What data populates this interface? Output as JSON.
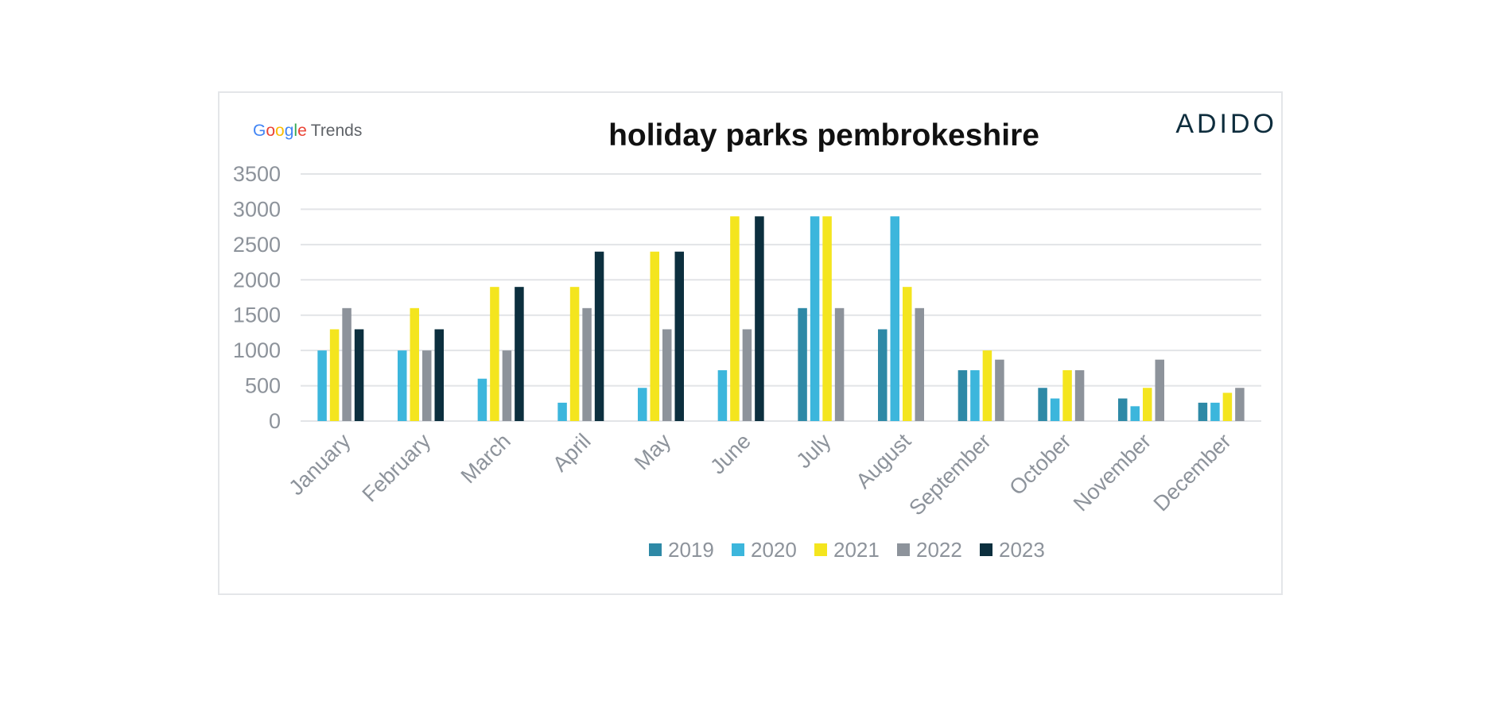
{
  "brand": {
    "google_letters": [
      {
        "ch": "G",
        "color": "#4285F4"
      },
      {
        "ch": "o",
        "color": "#EA4335"
      },
      {
        "ch": "o",
        "color": "#FBBC05"
      },
      {
        "ch": "g",
        "color": "#4285F4"
      },
      {
        "ch": "l",
        "color": "#34A853"
      },
      {
        "ch": "e",
        "color": "#EA4335"
      }
    ],
    "trends_label": "Trends",
    "company_logo": "ADIDO"
  },
  "chart_data": {
    "type": "bar",
    "title": "holiday parks pembrokeshire",
    "xlabel": "",
    "ylabel": "",
    "ylim": [
      0,
      3500
    ],
    "yticks": [
      0,
      500,
      1000,
      1500,
      2000,
      2500,
      3000,
      3500
    ],
    "grid": true,
    "legend_position": "bottom",
    "categories": [
      "January",
      "February",
      "March",
      "April",
      "May",
      "June",
      "July",
      "August",
      "September",
      "October",
      "November",
      "December"
    ],
    "series": [
      {
        "name": "2019",
        "color": "#2e89a6",
        "values": [
          0,
          0,
          0,
          0,
          0,
          0,
          1600,
          1300,
          720,
          470,
          320,
          260
        ]
      },
      {
        "name": "2020",
        "color": "#3cb6dc",
        "values": [
          1000,
          1000,
          600,
          260,
          470,
          720,
          2900,
          2900,
          720,
          320,
          210,
          260
        ]
      },
      {
        "name": "2021",
        "color": "#f4e51e",
        "values": [
          1300,
          1600,
          1900,
          1900,
          2400,
          2900,
          2900,
          1900,
          1000,
          720,
          470,
          400
        ]
      },
      {
        "name": "2022",
        "color": "#8d939b",
        "values": [
          1600,
          1000,
          1000,
          1600,
          1300,
          1300,
          1600,
          1600,
          870,
          720,
          870,
          470
        ]
      },
      {
        "name": "2023",
        "color": "#0c2f3e",
        "values": [
          1300,
          1300,
          1900,
          2400,
          2400,
          2900,
          0,
          0,
          0,
          0,
          0,
          0
        ]
      }
    ]
  }
}
